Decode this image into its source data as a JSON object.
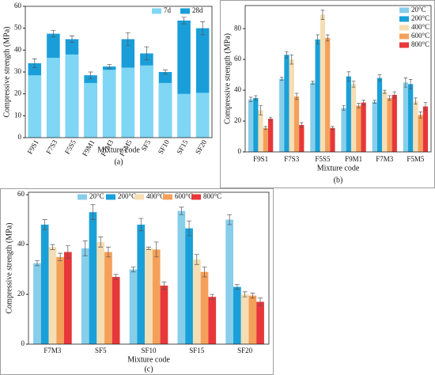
{
  "chart_data": [
    {
      "type": "bar",
      "barmode": "overlay",
      "ylabel": "Compressive strength (MPa)",
      "xlabel": "Mixture code",
      "caption": "(a)",
      "categories": [
        "F9S1",
        "F7S3",
        "F5S5",
        "F9M1",
        "F7M3",
        "F5M5",
        "SF5",
        "SF10",
        "SF15",
        "SF20"
      ],
      "series": [
        {
          "name": "7d",
          "color": "#7fd6f5",
          "values": [
            28.5,
            36.5,
            38,
            25,
            31,
            32,
            33,
            25,
            20,
            20.5
          ]
        },
        {
          "name": "28d",
          "color": "#1a9ed9",
          "values": [
            34,
            47.5,
            45,
            28.5,
            32.5,
            45,
            38.5,
            30,
            53.5,
            50
          ],
          "errors": [
            2,
            1.5,
            1.5,
            1.5,
            1,
            3,
            3,
            1,
            1.5,
            3
          ]
        }
      ],
      "ylim": [
        0,
        60
      ],
      "yticks": [
        0,
        10,
        20,
        30,
        40,
        50,
        60
      ],
      "legend": "upper right",
      "legend_columns": 2,
      "xtick_rotation": -60
    },
    {
      "type": "bar",
      "barmode": "group",
      "ylabel": "Compressive strength (MPa)",
      "xlabel": "Mixture code",
      "caption": "(b)",
      "categories": [
        "F9S1",
        "F7S3",
        "F5S5",
        "F9M1",
        "F7M3",
        "F5M5"
      ],
      "series": [
        {
          "name": "20°C",
          "color": "#87ceeb",
          "values": [
            34,
            47.5,
            45,
            28.5,
            32.5,
            45
          ],
          "errors": [
            1.5,
            1,
            1,
            1.5,
            1,
            3
          ]
        },
        {
          "name": "200°C",
          "color": "#1aa0d8",
          "values": [
            35,
            63,
            73,
            49,
            48,
            44
          ],
          "errors": [
            1.5,
            2,
            3,
            3,
            2,
            3
          ]
        },
        {
          "name": "400°C",
          "color": "#f5deb3",
          "values": [
            27,
            60,
            89,
            44,
            39,
            33
          ],
          "errors": [
            3,
            3,
            3,
            2,
            1,
            2
          ]
        },
        {
          "name": "600°C",
          "color": "#f5a05a",
          "values": [
            15.5,
            36,
            74,
            30,
            35,
            24
          ],
          "errors": [
            1,
            2,
            2,
            1.5,
            1.5,
            2
          ]
        },
        {
          "name": "800°C",
          "color": "#e8373a",
          "values": [
            21.5,
            17.5,
            15.5,
            32,
            37,
            29.5
          ],
          "errors": [
            1,
            1.5,
            1,
            1.5,
            2,
            2.5
          ]
        }
      ],
      "ylim": [
        0,
        95
      ],
      "yticks": [
        0,
        20,
        40,
        60,
        80
      ],
      "legend": "upper right",
      "legend_columns": 1,
      "xtick_rotation": 0
    },
    {
      "type": "bar",
      "barmode": "group",
      "ylabel": "Compressive strength (MPa)",
      "xlabel": "Mixture code",
      "caption": "(c)",
      "categories": [
        "F7M3",
        "SF5",
        "SF10",
        "SF15",
        "SF20"
      ],
      "series": [
        {
          "name": "20°C",
          "color": "#87ceeb",
          "values": [
            32.5,
            38.5,
            30,
            53.5,
            50
          ],
          "errors": [
            1,
            3,
            1,
            1.5,
            2
          ]
        },
        {
          "name": "200°C",
          "color": "#1aa0d8",
          "values": [
            48,
            53,
            48,
            46.5,
            23
          ],
          "errors": [
            2,
            3,
            2.5,
            3,
            1
          ]
        },
        {
          "name": "400°C",
          "color": "#f5deb3",
          "values": [
            39,
            41,
            38.5,
            34,
            20
          ],
          "errors": [
            1,
            2,
            0.5,
            2,
            1
          ]
        },
        {
          "name": "600°C",
          "color": "#f5a05a",
          "values": [
            35,
            37,
            38,
            29,
            19.5
          ],
          "errors": [
            1.5,
            2,
            3,
            2,
            1
          ]
        },
        {
          "name": "800°C",
          "color": "#e8373a",
          "values": [
            37,
            27,
            23.5,
            19,
            17
          ],
          "errors": [
            2.5,
            1,
            1.5,
            1,
            1.5
          ]
        }
      ],
      "ylim": [
        0,
        61
      ],
      "yticks": [
        0,
        20,
        40,
        60
      ],
      "legend": "upper center",
      "legend_columns": 5,
      "xtick_rotation": 0
    }
  ]
}
